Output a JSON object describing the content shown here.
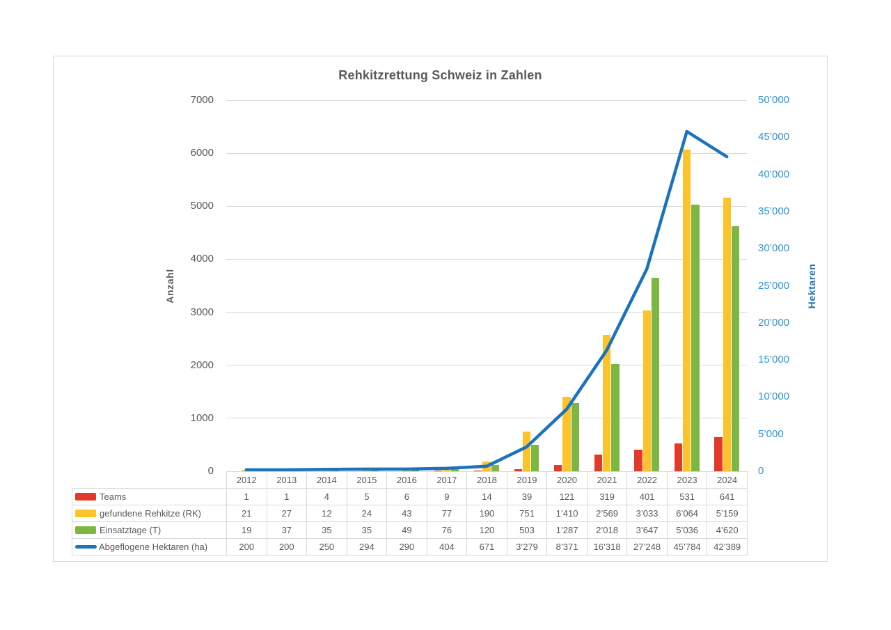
{
  "title": "Rehkitzrettung Schweiz in Zahlen",
  "left_axis": {
    "label": "Anzahl",
    "ticks": [
      "7000",
      "6000",
      "5000",
      "4000",
      "3000",
      "2000",
      "1000",
      "0"
    ],
    "min": 0,
    "max": 7000
  },
  "right_axis": {
    "label": "Hektaren",
    "ticks": [
      "50’000",
      "45’000",
      "40’000",
      "35’000",
      "30’000",
      "25’000",
      "20’000",
      "15’000",
      "10’000",
      "5’000",
      "0"
    ],
    "min": 0,
    "max": 50000
  },
  "chart_data": {
    "type": "combo",
    "subtypes": [
      "bar",
      "line"
    ],
    "title": "Rehkitzrettung Schweiz in Zahlen",
    "categories": [
      "2012",
      "2013",
      "2014",
      "2015",
      "2016",
      "2017",
      "2018",
      "2019",
      "2020",
      "2021",
      "2022",
      "2023",
      "2024"
    ],
    "series": [
      {
        "name": "Teams",
        "type": "bar",
        "axis": "left",
        "color": "#e2392b",
        "values": [
          1,
          1,
          4,
          5,
          6,
          9,
          14,
          39,
          121,
          319,
          401,
          531,
          641
        ],
        "display": [
          "1",
          "1",
          "4",
          "5",
          "6",
          "9",
          "14",
          "39",
          "121",
          "319",
          "401",
          "531",
          "641"
        ]
      },
      {
        "name": "gefundene Rehkitze (RK)",
        "type": "bar",
        "axis": "left",
        "color": "#fdc32b",
        "values": [
          21,
          27,
          12,
          24,
          43,
          77,
          190,
          751,
          1410,
          2569,
          3033,
          6064,
          5159
        ],
        "display": [
          "21",
          "27",
          "12",
          "24",
          "43",
          "77",
          "190",
          "751",
          "1’410",
          "2’569",
          "3’033",
          "6’064",
          "5’159"
        ]
      },
      {
        "name": "Einsatztage (T)",
        "type": "bar",
        "axis": "left",
        "color": "#7db742",
        "values": [
          19,
          37,
          35,
          35,
          49,
          76,
          120,
          503,
          1287,
          2018,
          3647,
          5036,
          4620
        ],
        "display": [
          "19",
          "37",
          "35",
          "35",
          "49",
          "76",
          "120",
          "503",
          "1’287",
          "2’018",
          "3’647",
          "5’036",
          "4’620"
        ]
      },
      {
        "name": "Abgeflogene Hektaren (ha)",
        "type": "line",
        "axis": "right",
        "color": "#1b73be",
        "values": [
          200,
          200,
          250,
          294,
          290,
          404,
          671,
          3279,
          8371,
          16318,
          27248,
          45784,
          42389
        ],
        "display": [
          "200",
          "200",
          "250",
          "294",
          "290",
          "404",
          "671",
          "3’279",
          "8’371",
          "16’318",
          "27’248",
          "45’784",
          "42’389"
        ]
      }
    ],
    "left_axis_range": [
      0,
      7000
    ],
    "right_axis_range": [
      0,
      50000
    ],
    "grid": "horizontal",
    "legend_position": "table-left-column"
  },
  "colors": {
    "grid": "#d9d9d9",
    "axis_text": "#595959",
    "right_axis_tick_text": "#2e95d8",
    "right_axis_title_text": "#1b73be",
    "border": "#d8d8d8"
  }
}
